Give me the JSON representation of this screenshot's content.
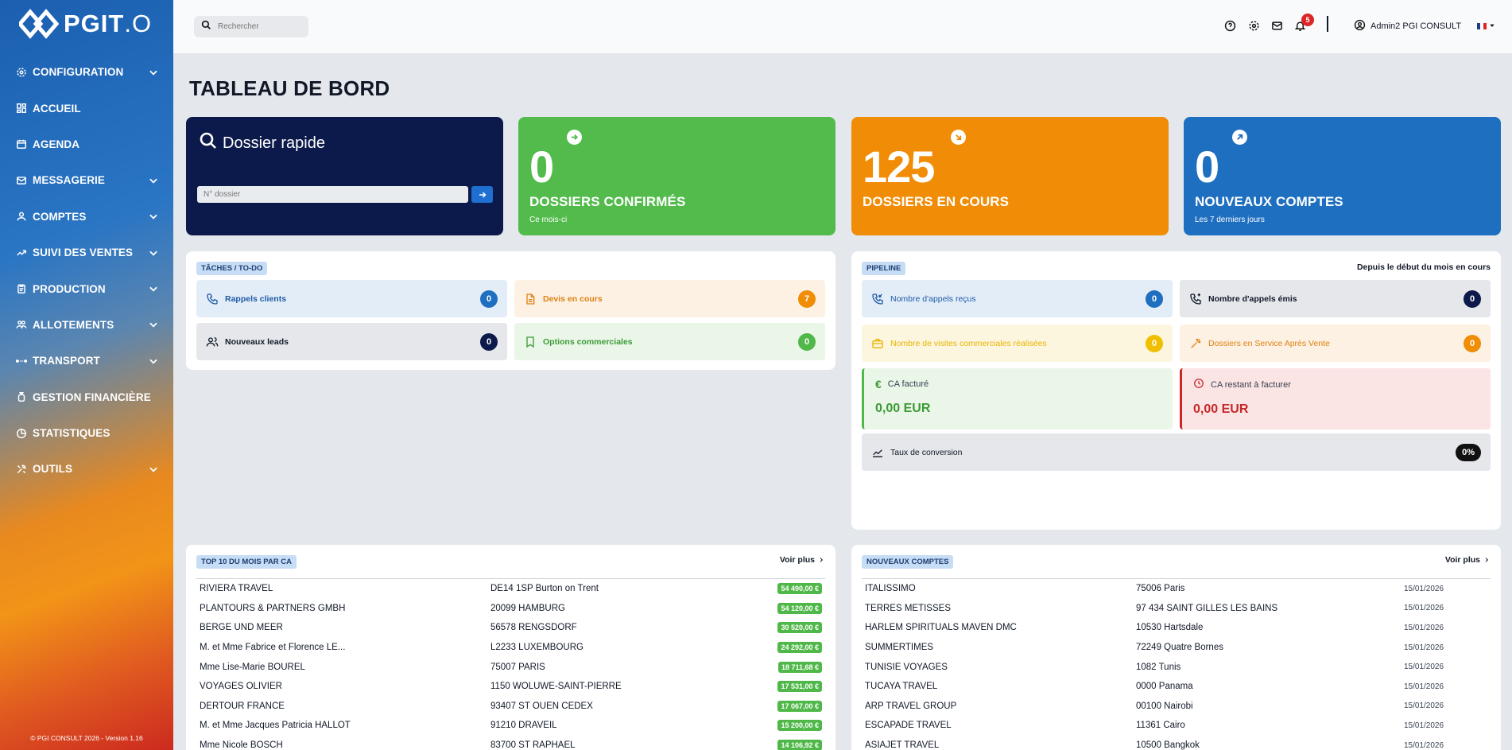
{
  "app": {
    "name": "PGIT.O",
    "logo_main": "PGIT",
    "logo_suffix": ".O",
    "copyright": "© PGI CONSULT 2026 - Version 1.16"
  },
  "sidebar": {
    "items": [
      {
        "label": "CONFIGURATION",
        "icon": "gear-icon",
        "has_children": true
      },
      {
        "label": "ACCUEIL",
        "icon": "dashboard-icon",
        "has_children": false
      },
      {
        "label": "AGENDA",
        "icon": "calendar-icon",
        "has_children": false
      },
      {
        "label": "MESSAGERIE",
        "icon": "mail-icon",
        "has_children": true
      },
      {
        "label": "COMPTES",
        "icon": "user-icon",
        "has_children": true
      },
      {
        "label": "SUIVI DES VENTES",
        "icon": "trend-icon",
        "has_children": true
      },
      {
        "label": "PRODUCTION",
        "icon": "clipboard-icon",
        "has_children": true
      },
      {
        "label": "ALLOTEMENTS",
        "icon": "users-icon",
        "has_children": true
      },
      {
        "label": "TRANSPORT",
        "icon": "route-icon",
        "has_children": true
      },
      {
        "label": "GESTION FINANCIÈRE",
        "icon": "money-bag-icon",
        "has_children": false
      },
      {
        "label": "STATISTIQUES",
        "icon": "pie-chart-icon",
        "has_children": false
      },
      {
        "label": "OUTILS",
        "icon": "tools-icon",
        "has_children": true
      }
    ]
  },
  "header": {
    "search_placeholder": "Rechercher",
    "notification_count": "5",
    "user_name": "Admin2 PGI CONSULT",
    "language": "FR"
  },
  "page": {
    "title": "TABLEAU DE BORD"
  },
  "quick": {
    "title": "Dossier rapide",
    "placeholder": "N° dossier"
  },
  "kpis": [
    {
      "value": "0",
      "label": "DOSSIERS CONFIRMÉS",
      "sub": "Ce mois-ci",
      "color": "#52bb4b"
    },
    {
      "value": "125",
      "label": "DOSSIERS EN COURS",
      "sub": "",
      "color": "#f08c05"
    },
    {
      "value": "0",
      "label": "NOUVEAUX COMPTES",
      "sub": "Les 7 derniers jours",
      "color": "#1e6fc0"
    }
  ],
  "tasks": {
    "tag": "TÂCHES / TO-DO",
    "items": [
      {
        "label": "Rappels clients",
        "count": "0"
      },
      {
        "label": "Devis en cours",
        "count": "7"
      },
      {
        "label": "Nouveaux leads",
        "count": "0"
      },
      {
        "label": "Options commerciales",
        "count": "0"
      }
    ]
  },
  "pipeline": {
    "tag": "PIPELINE",
    "period": "Depuis le début du mois en cours",
    "items": [
      {
        "label": "Nombre d'appels reçus",
        "count": "0"
      },
      {
        "label": "Nombre d'appels émis",
        "count": "0"
      },
      {
        "label": "Nombre de visites commerciales réalisées",
        "count": "0"
      },
      {
        "label": "Dossiers en Service Après Vente",
        "count": "0"
      }
    ],
    "ca_facture_label": "CA facturé",
    "ca_facture_value": "0,00 EUR",
    "ca_restant_label": "CA restant à facturer",
    "ca_restant_value": "0,00 EUR",
    "conversion_label": "Taux de conversion",
    "conversion_value": "0%"
  },
  "top10": {
    "tag": "TOP 10 DU MOIS PAR CA",
    "more": "Voir plus",
    "rows": [
      {
        "name": "RIVIERA TRAVEL",
        "city": "DE14 1SP Burton on Trent",
        "amount": "54 490,00 €"
      },
      {
        "name": "PLANTOURS & PARTNERS GMBH",
        "city": "20099 HAMBURG",
        "amount": "54 120,00 €"
      },
      {
        "name": "BERGE UND MEER",
        "city": "56578 RENGSDORF",
        "amount": "30 520,00 €"
      },
      {
        "name": "M. et Mme Fabrice et Florence LE...",
        "city": "L2233 LUXEMBOURG",
        "amount": "24 292,00 €"
      },
      {
        "name": "Mme Lise-Marie BOUREL",
        "city": "75007 PARIS",
        "amount": "18 711,68 €"
      },
      {
        "name": "VOYAGES OLIVIER",
        "city": "1150 WOLUWE-SAINT-PIERRE",
        "amount": "17 531,00 €"
      },
      {
        "name": "DERTOUR FRANCE",
        "city": "93407 ST OUEN CEDEX",
        "amount": "17 067,00 €"
      },
      {
        "name": "M. et Mme Jacques Patricia HALLOT",
        "city": "91210 DRAVEIL",
        "amount": "15 200,00 €"
      },
      {
        "name": "Mme Nicole BOSCH",
        "city": "83700 ST RAPHAEL",
        "amount": "14 106,92 €"
      }
    ]
  },
  "new_accounts": {
    "tag": "NOUVEAUX COMPTES",
    "more": "Voir plus",
    "rows": [
      {
        "name": "ITALISSIMO",
        "city": "75006 Paris",
        "date": "15/01/2026"
      },
      {
        "name": "TERRES METISSES",
        "city": "97 434 SAINT GILLES LES BAINS",
        "date": "15/01/2026"
      },
      {
        "name": "HARLEM SPIRITUALS MAVEN DMC",
        "city": "10530 Hartsdale",
        "date": "15/01/2026"
      },
      {
        "name": "SUMMERTIMES",
        "city": "72249 Quatre Bornes",
        "date": "15/01/2026"
      },
      {
        "name": "TUNISIE VOYAGES",
        "city": "1082 Tunis",
        "date": "15/01/2026"
      },
      {
        "name": "TUCAYA TRAVEL",
        "city": "0000 Panama",
        "date": "15/01/2026"
      },
      {
        "name": "ARP TRAVEL GROUP",
        "city": "00100 Nairobi",
        "date": "15/01/2026"
      },
      {
        "name": "ESCAPADE TRAVEL",
        "city": "11361 Cairo",
        "date": "15/01/2026"
      },
      {
        "name": "ASIAJET TRAVEL",
        "city": "10500 Bangkok",
        "date": "15/01/2026"
      }
    ]
  }
}
